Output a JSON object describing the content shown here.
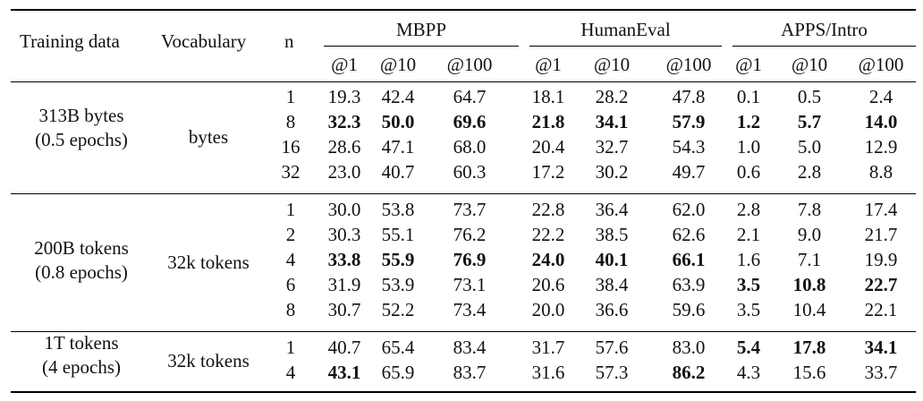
{
  "header": {
    "training_data": "Training data",
    "vocabulary": "Vocabulary",
    "n": "n",
    "benchmarks": [
      "MBPP",
      "HumanEval",
      "APPS/Intro"
    ],
    "k_labels": [
      "@1",
      "@10",
      "@100"
    ]
  },
  "groups": [
    {
      "training": [
        "313B bytes",
        "(0.5 epochs)"
      ],
      "vocab": "bytes",
      "rows": [
        {
          "n": "1",
          "v": [
            "19.3",
            "42.4",
            "64.7",
            "18.1",
            "28.2",
            "47.8",
            "0.1",
            "0.5",
            "2.4"
          ],
          "bold": [
            false,
            false,
            false,
            false,
            false,
            false,
            false,
            false,
            false
          ]
        },
        {
          "n": "8",
          "v": [
            "32.3",
            "50.0",
            "69.6",
            "21.8",
            "34.1",
            "57.9",
            "1.2",
            "5.7",
            "14.0"
          ],
          "bold": [
            true,
            true,
            true,
            true,
            true,
            true,
            true,
            true,
            true
          ]
        },
        {
          "n": "16",
          "v": [
            "28.6",
            "47.1",
            "68.0",
            "20.4",
            "32.7",
            "54.3",
            "1.0",
            "5.0",
            "12.9"
          ],
          "bold": [
            false,
            false,
            false,
            false,
            false,
            false,
            false,
            false,
            false
          ]
        },
        {
          "n": "32",
          "v": [
            "23.0",
            "40.7",
            "60.3",
            "17.2",
            "30.2",
            "49.7",
            "0.6",
            "2.8",
            "8.8"
          ],
          "bold": [
            false,
            false,
            false,
            false,
            false,
            false,
            false,
            false,
            false
          ]
        }
      ]
    },
    {
      "training": [
        "200B tokens",
        "(0.8 epochs)"
      ],
      "vocab": "32k tokens",
      "rows": [
        {
          "n": "1",
          "v": [
            "30.0",
            "53.8",
            "73.7",
            "22.8",
            "36.4",
            "62.0",
            "2.8",
            "7.8",
            "17.4"
          ],
          "bold": [
            false,
            false,
            false,
            false,
            false,
            false,
            false,
            false,
            false
          ]
        },
        {
          "n": "2",
          "v": [
            "30.3",
            "55.1",
            "76.2",
            "22.2",
            "38.5",
            "62.6",
            "2.1",
            "9.0",
            "21.7"
          ],
          "bold": [
            false,
            false,
            false,
            false,
            false,
            false,
            false,
            false,
            false
          ]
        },
        {
          "n": "4",
          "v": [
            "33.8",
            "55.9",
            "76.9",
            "24.0",
            "40.1",
            "66.1",
            "1.6",
            "7.1",
            "19.9"
          ],
          "bold": [
            true,
            true,
            true,
            true,
            true,
            true,
            false,
            false,
            false
          ]
        },
        {
          "n": "6",
          "v": [
            "31.9",
            "53.9",
            "73.1",
            "20.6",
            "38.4",
            "63.9",
            "3.5",
            "10.8",
            "22.7"
          ],
          "bold": [
            false,
            false,
            false,
            false,
            false,
            false,
            true,
            true,
            true
          ]
        },
        {
          "n": "8",
          "v": [
            "30.7",
            "52.2",
            "73.4",
            "20.0",
            "36.6",
            "59.6",
            "3.5",
            "10.4",
            "22.1"
          ],
          "bold": [
            false,
            false,
            false,
            false,
            false,
            false,
            false,
            false,
            false
          ]
        }
      ]
    },
    {
      "training": [
        "1T tokens",
        "(4 epochs)"
      ],
      "vocab": "32k tokens",
      "rows": [
        {
          "n": "1",
          "v": [
            "40.7",
            "65.4",
            "83.4",
            "31.7",
            "57.6",
            "83.0",
            "5.4",
            "17.8",
            "34.1"
          ],
          "bold": [
            false,
            false,
            false,
            false,
            false,
            false,
            true,
            true,
            true
          ]
        },
        {
          "n": "4",
          "v": [
            "43.1",
            "65.9",
            "83.7",
            "31.6",
            "57.3",
            "86.2",
            "4.3",
            "15.6",
            "33.7"
          ],
          "bold": [
            true,
            false,
            false,
            false,
            false,
            true,
            false,
            false,
            false
          ]
        }
      ]
    }
  ]
}
